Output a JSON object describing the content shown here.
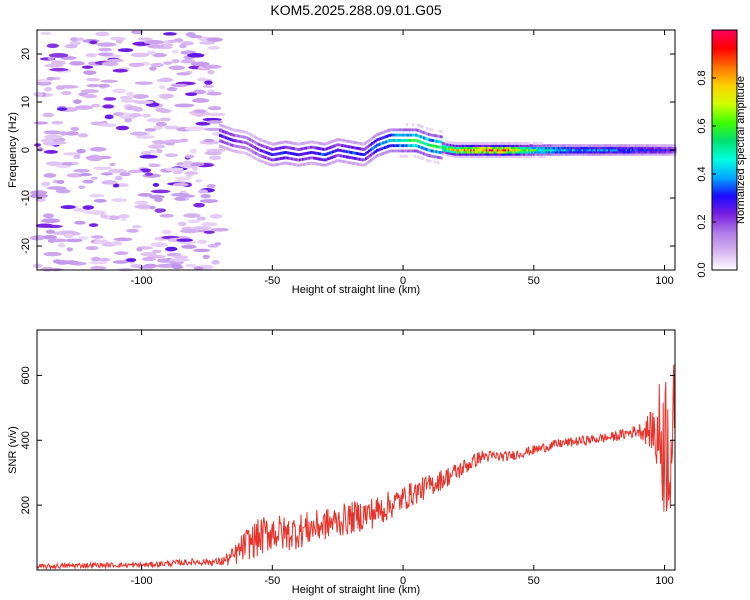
{
  "figure_title": "KOM5.2025.288.09.01.G05",
  "colorbar": {
    "label": "Normalized spectral amplitude",
    "ticks": [
      "0.0",
      "0.2",
      "0.4",
      "0.6",
      "0.8"
    ],
    "tick_values": [
      0.0,
      0.2,
      0.4,
      0.6,
      0.8
    ],
    "range": [
      0,
      1
    ],
    "stops": [
      "#ffffff",
      "#d8b4f0",
      "#b07de8",
      "#7a1fe0",
      "#1a0aff",
      "#00a8ff",
      "#00ffe0",
      "#00e070",
      "#40ff00",
      "#d0ff00",
      "#ffd000",
      "#ff7000",
      "#ff0000",
      "#ff0060"
    ]
  },
  "chart_data": [
    {
      "type": "heatmap",
      "title": "KOM5.2025.288.09.01.G05",
      "xlabel": "Height of straight line (km)",
      "ylabel": "Frequency (Hz)",
      "xlim": [
        -140,
        104
      ],
      "ylim": [
        -25,
        25
      ],
      "xticks": [
        -100,
        -50,
        0,
        50,
        100
      ],
      "xtick_labels": [
        "-100",
        "-50",
        "0",
        "50",
        "100"
      ],
      "yticks": [
        -20,
        -10,
        0,
        10,
        20
      ],
      "ytick_labels": [
        "-20",
        "-10",
        "0",
        "10",
        "20"
      ],
      "description_of_ridge": {
        "x": [
          -70,
          -65,
          -60,
          -55,
          -50,
          -45,
          -40,
          -35,
          -30,
          -25,
          -20,
          -15,
          -10,
          -5,
          0,
          5,
          10,
          15,
          20,
          30,
          40,
          50,
          60,
          70,
          80,
          90,
          100,
          104
        ],
        "freq": [
          3,
          2,
          1.5,
          0,
          -1,
          -0.5,
          -1,
          -0.5,
          -1,
          0,
          -0.5,
          -1,
          1,
          2,
          2,
          2,
          1,
          0.5,
          0,
          0,
          0,
          0,
          0,
          0,
          0,
          0,
          0,
          0
        ],
        "amplitude": [
          0.3,
          0.25,
          0.2,
          0.25,
          0.3,
          0.35,
          0.3,
          0.3,
          0.35,
          0.3,
          0.35,
          0.3,
          0.4,
          0.45,
          0.55,
          0.6,
          0.55,
          0.6,
          0.8,
          0.9,
          0.95,
          0.6,
          0.45,
          0.4,
          0.4,
          0.35,
          0.3,
          0.25
        ]
      },
      "noise_region_x": [
        -140,
        -70
      ]
    },
    {
      "type": "line",
      "xlabel": "Height of straight line (km)",
      "ylabel": "SNR (v/v)",
      "xlim": [
        -140,
        104
      ],
      "ylim": [
        0,
        740
      ],
      "xticks": [
        -100,
        -50,
        0,
        50,
        100
      ],
      "xtick_labels": [
        "-100",
        "-50",
        "0",
        "50",
        "100"
      ],
      "yticks": [
        200,
        400,
        600
      ],
      "ytick_labels": [
        "200",
        "400",
        "600"
      ],
      "series": [
        {
          "name": "SNR",
          "color": "#e8322a",
          "x": [
            -140,
            -120,
            -100,
            -80,
            -70,
            -65,
            -60,
            -55,
            -50,
            -45,
            -40,
            -30,
            -20,
            -10,
            0,
            10,
            20,
            30,
            40,
            50,
            60,
            70,
            80,
            90,
            95,
            100,
            104
          ],
          "trend": [
            10,
            15,
            15,
            25,
            25,
            40,
            80,
            100,
            120,
            110,
            120,
            140,
            160,
            180,
            220,
            260,
            300,
            350,
            350,
            370,
            390,
            400,
            410,
            430,
            430,
            400,
            400
          ],
          "noise_amplitude": [
            8,
            8,
            8,
            10,
            12,
            30,
            50,
            60,
            60,
            55,
            55,
            50,
            50,
            50,
            40,
            35,
            30,
            20,
            15,
            15,
            15,
            15,
            15,
            20,
            60,
            250,
            250
          ]
        }
      ]
    }
  ]
}
